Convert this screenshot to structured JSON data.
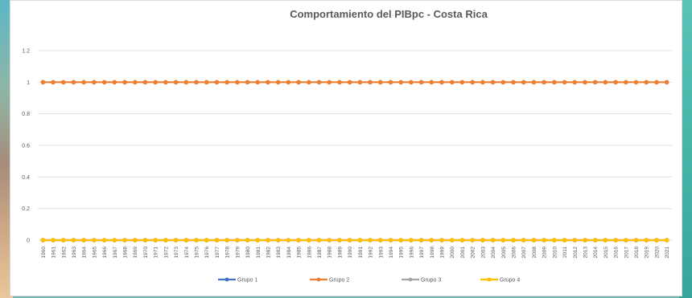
{
  "chart_data": {
    "type": "line",
    "title": "Comportamiento del PIBpc - Costa Rica",
    "xlabel": "",
    "ylabel": "",
    "ylim": [
      0,
      1.2
    ],
    "yticks": [
      "0",
      "0.2",
      "0.4",
      "0.6",
      "0.8",
      "1",
      "1.2"
    ],
    "grid": "horizontal",
    "legend": "bottom",
    "x": [
      "1960",
      "1961",
      "1962",
      "1963",
      "1964",
      "1965",
      "1966",
      "1967",
      "1968",
      "1969",
      "1970",
      "1971",
      "1972",
      "1973",
      "1974",
      "1975",
      "1976",
      "1977",
      "1978",
      "1979",
      "1980",
      "1981",
      "1982",
      "1983",
      "1984",
      "1985",
      "1986",
      "1987",
      "1988",
      "1989",
      "1990",
      "1991",
      "1992",
      "1993",
      "1994",
      "1995",
      "1996",
      "1997",
      "1998",
      "1999",
      "2000",
      "2001",
      "2002",
      "2003",
      "2004",
      "2005",
      "2006",
      "2007",
      "2008",
      "2009",
      "2010",
      "2011",
      "2012",
      "2013",
      "2014",
      "2015",
      "2016",
      "2017",
      "2018",
      "2019",
      "2020",
      "2021"
    ],
    "series": [
      {
        "name": "Grupo 1",
        "color": "#4472c4",
        "value": 0
      },
      {
        "name": "Grupo 2",
        "color": "#ed7d31",
        "value": 1
      },
      {
        "name": "Grupo 3",
        "color": "#a5a5a5",
        "value": 0
      },
      {
        "name": "Grupo 4",
        "color": "#ffc000",
        "value": 0
      }
    ]
  }
}
